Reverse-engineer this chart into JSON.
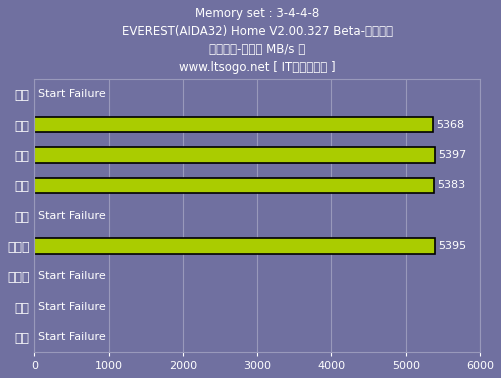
{
  "title_lines": [
    "Memory set : 3-4-4-8",
    "EVEREST(AIDA32) Home V2.00.327 Beta-性能测试",
    "内存读取-速率（ MB/s ）",
    "www.ltsogo.net [ IT搜购评测室 ]"
  ],
  "categories": [
    "勤茂",
    "金邦",
    "超胜",
    "现代",
    "宇瞻",
    "金士顿",
    "金士泰",
    "光电",
    "威刚"
  ],
  "values": [
    null,
    5368,
    5397,
    5383,
    null,
    5395,
    null,
    null,
    null
  ],
  "failure_label": "Start Failure",
  "bar_color": "#aacc00",
  "bar_edge_color": "#000000",
  "background_color": "#7070a0",
  "text_color": "#ffffff",
  "grid_color": "#9999bb",
  "value_label_color": "#ffffff",
  "xlim": [
    0,
    6000
  ],
  "xticks": [
    0,
    1000,
    2000,
    3000,
    4000,
    5000,
    6000
  ],
  "title_fontsize": 8.5,
  "label_fontsize": 9,
  "tick_fontsize": 8,
  "bar_height": 0.5,
  "failure_fontsize": 8
}
